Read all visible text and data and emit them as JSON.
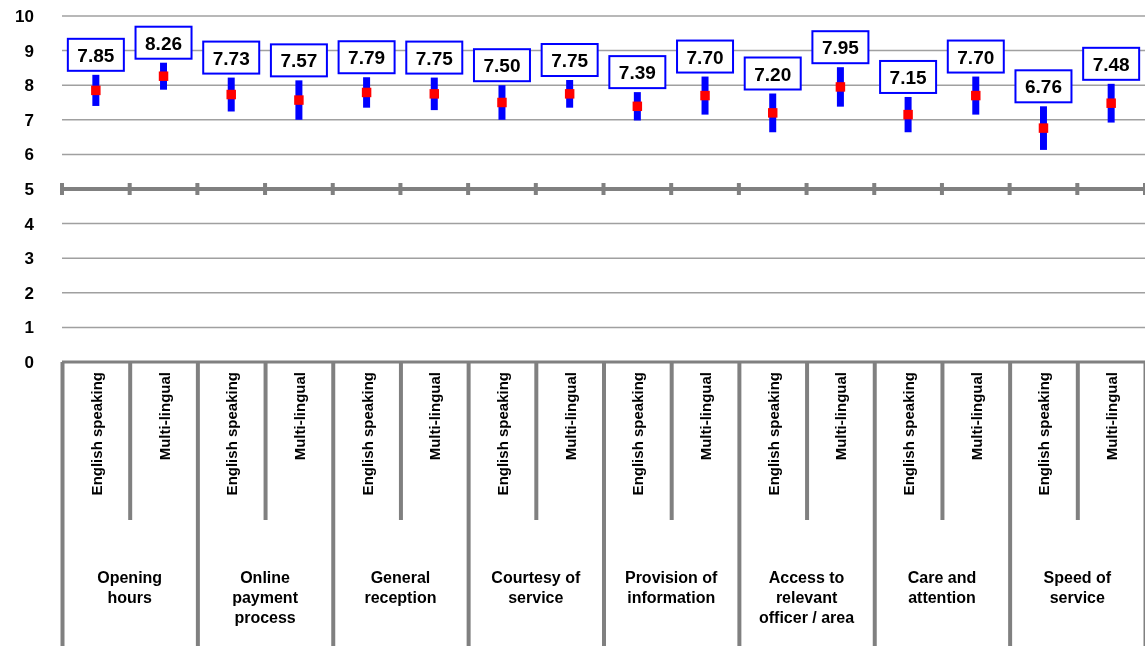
{
  "chart_data": {
    "type": "scatter",
    "categories": [
      "English speaking",
      "Multi-lingual",
      "English speaking",
      "Multi-lingual",
      "English speaking",
      "Multi-lingual",
      "English speaking",
      "Multi-lingual",
      "English speaking",
      "Multi-lingual",
      "English speaking",
      "Multi-lingual",
      "English speaking",
      "Multi-lingual",
      "English speaking",
      "Multi-lingual"
    ],
    "series": [
      {
        "color": "#ff0000",
        "values": [
          7.85,
          8.26,
          7.73,
          7.57,
          7.79,
          7.75,
          7.5,
          7.75,
          7.39,
          7.7,
          7.2,
          7.95,
          7.15,
          7.7,
          6.76,
          7.48
        ],
        "errors": [
          0.45,
          0.39,
          0.49,
          0.57,
          0.44,
          0.47,
          0.5,
          0.4,
          0.41,
          0.55,
          0.56,
          0.57,
          0.51,
          0.55,
          0.63,
          0.56
        ],
        "value_labels": [
          "7.85",
          "8.26",
          "7.73",
          "7.57",
          "7.79",
          "7.75",
          "7.50",
          "7.75",
          "7.39",
          "7.70",
          "7.20",
          "7.95",
          "7.15",
          "7.70",
          "6.76",
          "7.48"
        ]
      }
    ],
    "marker": "square",
    "ylim": [
      0,
      10
    ],
    "yticks": [
      0,
      1,
      2,
      3,
      4,
      5,
      6,
      7,
      8,
      9,
      10
    ],
    "grid": "y",
    "ref_lines": [
      {
        "axis": "y",
        "value": 5,
        "color": "#808080"
      }
    ],
    "annotations": [
      "Opening hours",
      "Online payment process",
      "General reception",
      "Courtesy of service",
      "Provision of information",
      "Access to relevant officer / area",
      "Care and attention",
      "Speed of service"
    ]
  }
}
